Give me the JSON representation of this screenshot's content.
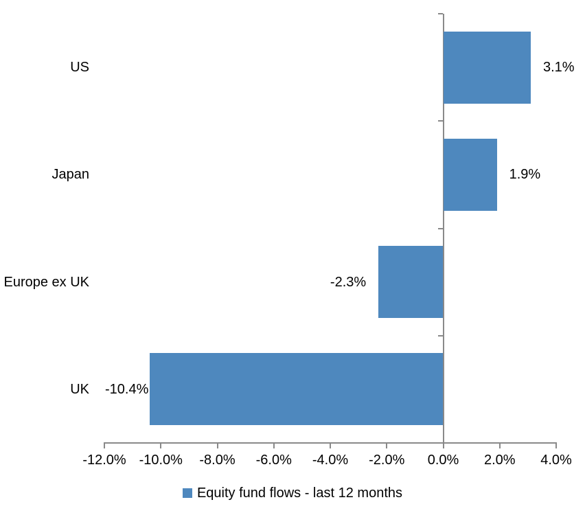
{
  "chart_data": {
    "type": "bar",
    "orientation": "horizontal",
    "title": "",
    "xlabel": "",
    "ylabel": "",
    "categories": [
      "US",
      "Japan",
      "Europe ex UK",
      "UK"
    ],
    "series": [
      {
        "name": "Equity fund flows - last 12 months",
        "values": [
          3.1,
          1.9,
          -2.3,
          -10.4
        ],
        "data_labels": [
          "3.1%",
          "1.9%",
          "-2.3%",
          "-10.4%"
        ]
      }
    ],
    "xlim": [
      -12,
      4
    ],
    "x_tick_step": 2,
    "x_ticks": [
      -12,
      -10,
      -8,
      -6,
      -4,
      -2,
      0,
      2,
      4
    ],
    "x_tick_labels": [
      "-12.0%",
      "-10.0%",
      "-8.0%",
      "-6.0%",
      "-4.0%",
      "-2.0%",
      "0.0%",
      "2.0%",
      "4.0%"
    ],
    "grid": "off",
    "legend": {
      "position": "bottom",
      "label": "Equity fund flows - last 12 months"
    },
    "colors": {
      "bar": "#4E88BE",
      "axis": "#898989",
      "text": "#000000",
      "background": "#FFFFFF"
    }
  }
}
